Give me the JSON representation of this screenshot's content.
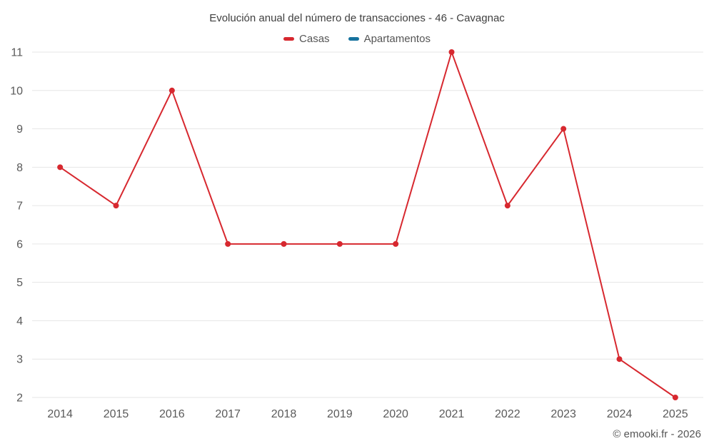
{
  "title": "Evolución anual del número de transacciones - 46 - Cavagnac",
  "legend": [
    {
      "label": "Casas",
      "color": "#d7282f"
    },
    {
      "label": "Apartamentos",
      "color": "#16729e"
    }
  ],
  "footer": "© emooki.fr - 2026",
  "colors": {
    "grid": "#e6e6e6",
    "tick_text": "#5a5a5a",
    "title_text": "#3f3f3f"
  },
  "chart_data": {
    "type": "line",
    "title": "Evolución anual del número de transacciones - 46 - Cavagnac",
    "categories": [
      "2014",
      "2015",
      "2016",
      "2017",
      "2018",
      "2019",
      "2020",
      "2021",
      "2022",
      "2023",
      "2024",
      "2025"
    ],
    "series": [
      {
        "name": "Casas",
        "color": "#d7282f",
        "values": [
          8,
          7,
          10,
          6,
          6,
          6,
          6,
          11,
          7,
          9,
          3,
          2
        ]
      },
      {
        "name": "Apartamentos",
        "color": "#16729e",
        "values": []
      }
    ],
    "xlabel": "",
    "ylabel": "",
    "ylim": [
      2,
      11
    ],
    "ytick_step": 1,
    "grid": "horizontal",
    "legend_position": "top",
    "marker": "circle"
  }
}
